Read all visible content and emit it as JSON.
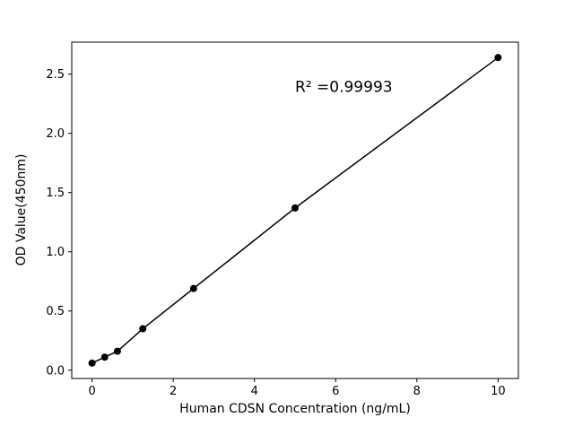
{
  "chart_data": {
    "type": "scatter",
    "title": "",
    "xlabel": "Human CDSN Concentration (ng/mL)",
    "ylabel": "OD Value(450nm)",
    "x": [
      0,
      0.3125,
      0.625,
      1.25,
      2.5,
      5,
      10
    ],
    "y": [
      0.06,
      0.11,
      0.16,
      0.35,
      0.69,
      1.37,
      2.64
    ],
    "xlim": [
      -0.5,
      10.5
    ],
    "ylim": [
      -0.07,
      2.77
    ],
    "xticks": [
      0,
      2,
      4,
      6,
      8,
      10
    ],
    "yticks": [
      0.0,
      0.5,
      1.0,
      1.5,
      2.0,
      2.5
    ],
    "annotation": {
      "text": "R² =0.99993",
      "x": 5.0,
      "y": 2.35
    },
    "line_color": "#000000",
    "marker_color": "#000000",
    "marker_radius": 4,
    "line_width": 1.5,
    "background_color": "#ffffff",
    "grid": false
  }
}
